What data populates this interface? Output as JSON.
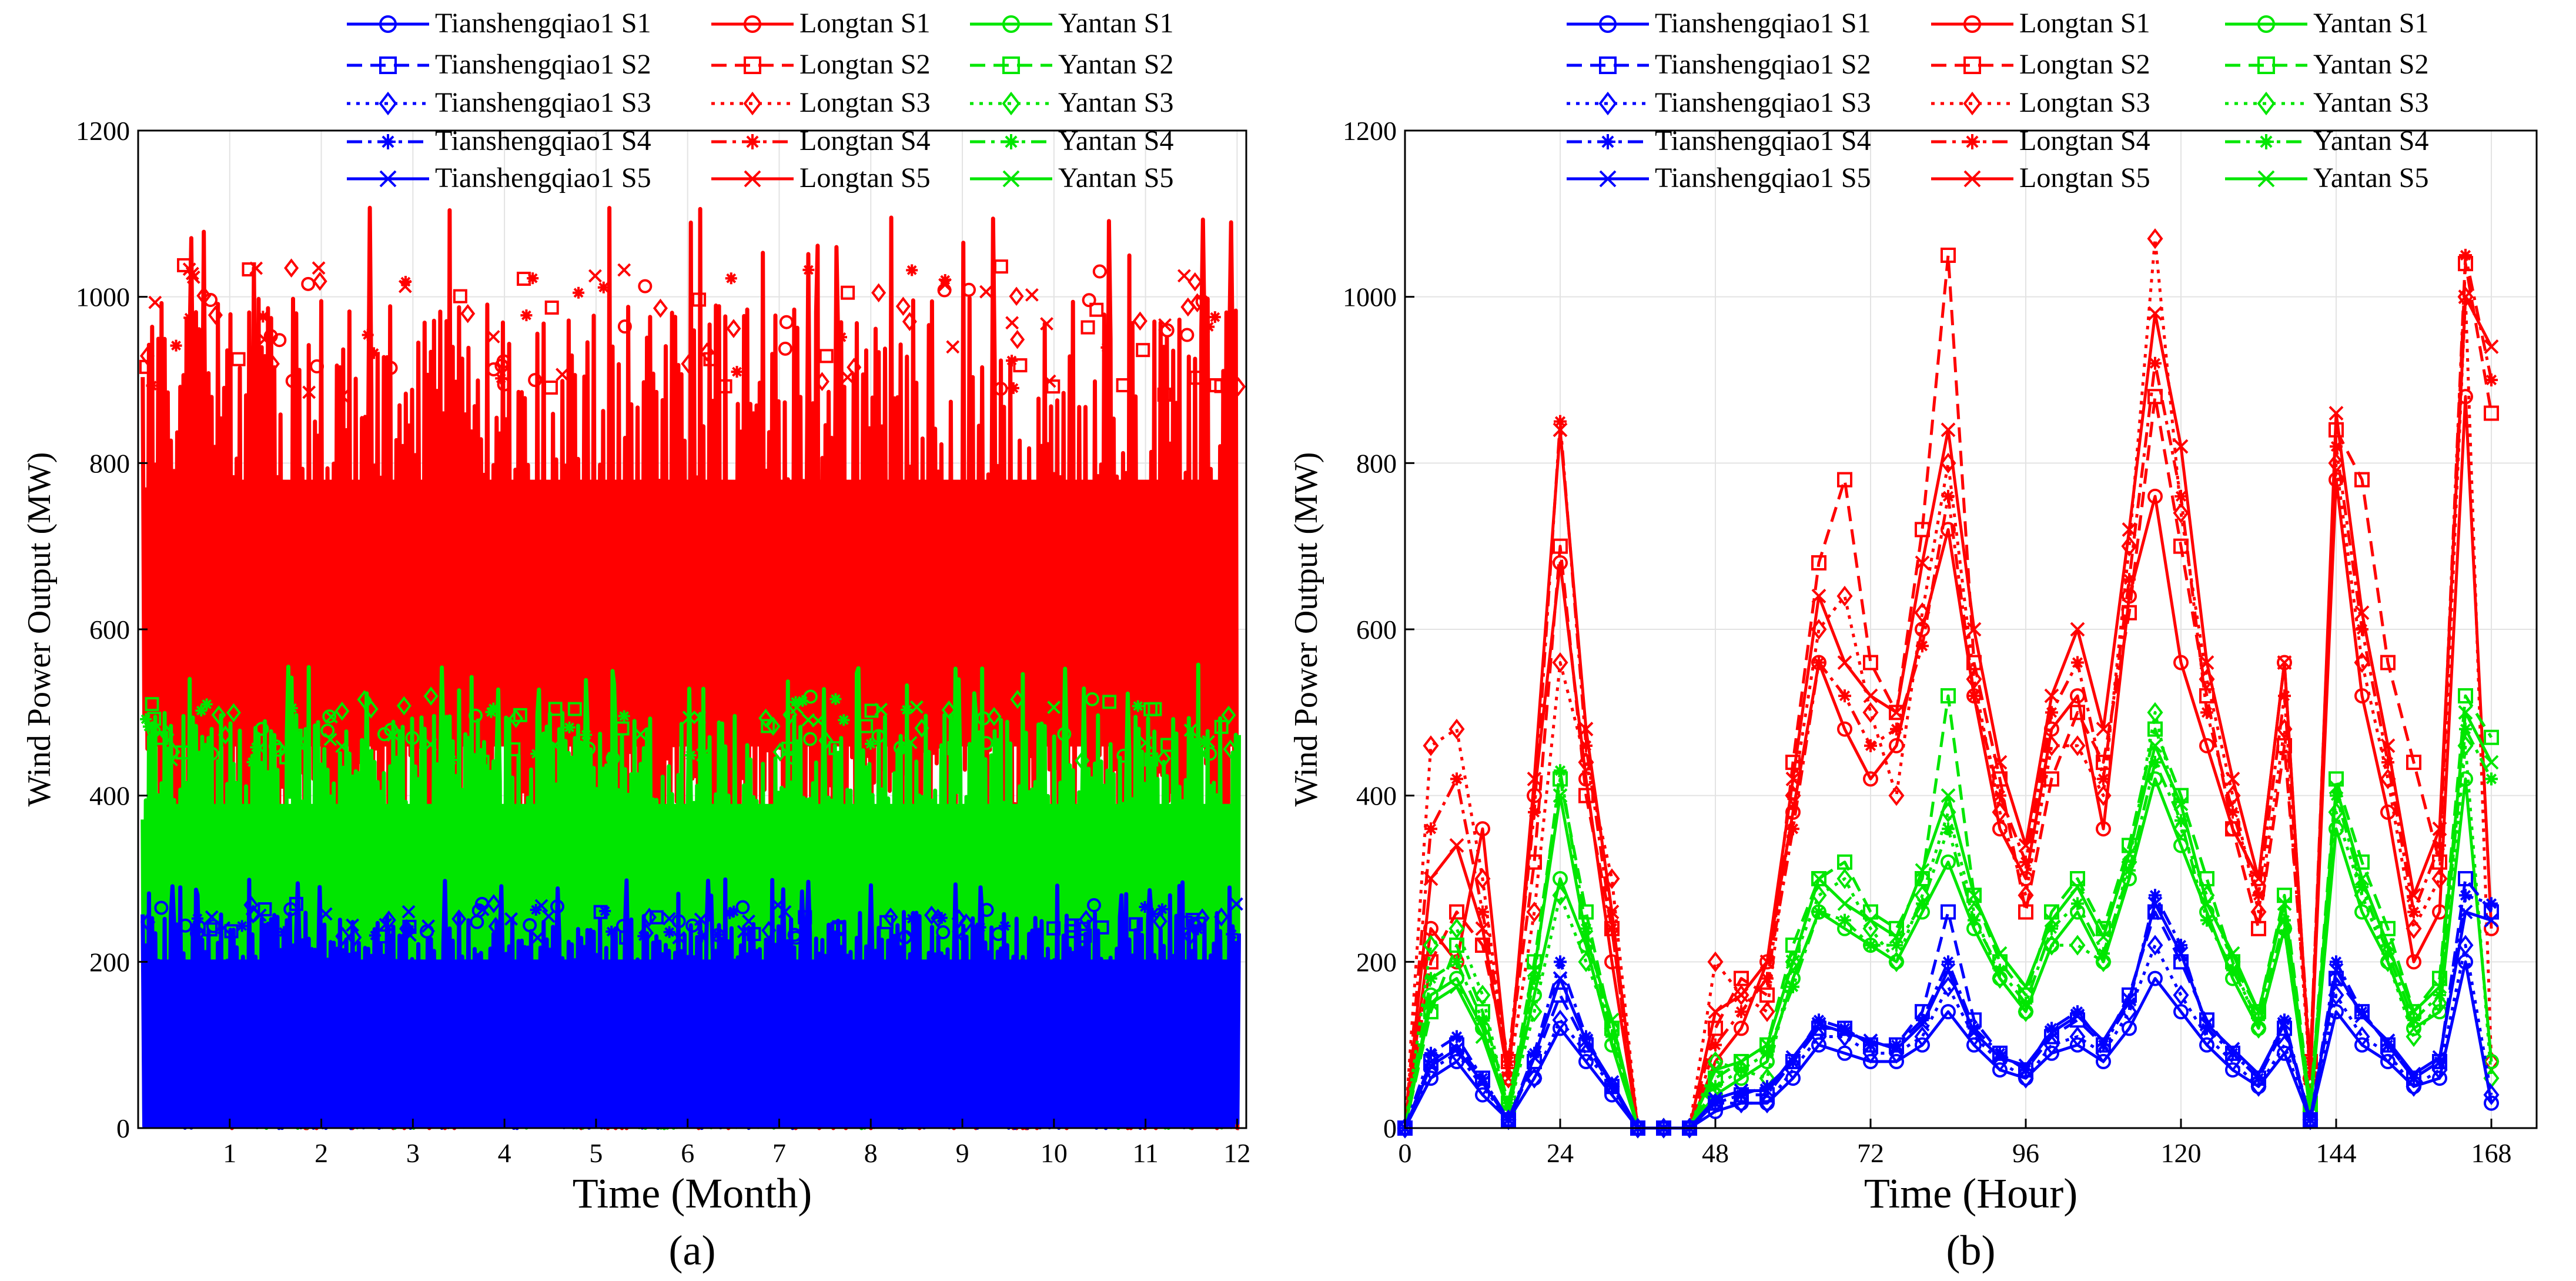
{
  "figure": {
    "panel_labels": [
      "(a)",
      "(b)"
    ]
  },
  "legend": {
    "entries": [
      {
        "label": "Tianshengqiao1 S1",
        "color": "#0000ff",
        "dash": "solid",
        "marker": "circle"
      },
      {
        "label": "Tianshengqiao1 S2",
        "color": "#0000ff",
        "dash": "dashed",
        "marker": "square"
      },
      {
        "label": "Tianshengqiao1 S3",
        "color": "#0000ff",
        "dash": "dotted",
        "marker": "diamond"
      },
      {
        "label": "Tianshengqiao1 S4",
        "color": "#0000ff",
        "dash": "dashdot",
        "marker": "asterisk"
      },
      {
        "label": "Tianshengqiao1 S5",
        "color": "#0000ff",
        "dash": "solid",
        "marker": "x"
      },
      {
        "label": "Longtan S1",
        "color": "#ff0000",
        "dash": "solid",
        "marker": "circle"
      },
      {
        "label": "Longtan S2",
        "color": "#ff0000",
        "dash": "dashed",
        "marker": "square"
      },
      {
        "label": "Longtan S3",
        "color": "#ff0000",
        "dash": "dotted",
        "marker": "diamond"
      },
      {
        "label": "Longtan S4",
        "color": "#ff0000",
        "dash": "dashdot",
        "marker": "asterisk"
      },
      {
        "label": "Longtan S5",
        "color": "#ff0000",
        "dash": "solid",
        "marker": "x"
      },
      {
        "label": "Yantan S1",
        "color": "#00e600",
        "dash": "solid",
        "marker": "circle"
      },
      {
        "label": "Yantan S2",
        "color": "#00e600",
        "dash": "dashed",
        "marker": "square"
      },
      {
        "label": "Yantan S3",
        "color": "#00e600",
        "dash": "dotted",
        "marker": "diamond"
      },
      {
        "label": "Yantan S4",
        "color": "#00e600",
        "dash": "dashdot",
        "marker": "asterisk"
      },
      {
        "label": "Yantan S5",
        "color": "#00e600",
        "dash": "solid",
        "marker": "x"
      }
    ]
  },
  "chart_data": [
    {
      "type": "line",
      "panel": "(a)",
      "xlabel": "Time (Month)",
      "ylabel": "Wind Power Output (MW)",
      "xlim": [
        0,
        12.1
      ],
      "ylim": [
        0,
        1200
      ],
      "xticks": [
        1,
        2,
        3,
        4,
        5,
        6,
        7,
        8,
        9,
        10,
        11,
        12
      ],
      "yticks": [
        0,
        200,
        400,
        600,
        800,
        1000,
        1200
      ],
      "grid": true,
      "legend_position": "top",
      "series_envelope": [
        {
          "name": "Longtan",
          "color": "#ff0000",
          "typical_range": [
            450,
            1000
          ],
          "peak": 1110
        },
        {
          "name": "Yantan",
          "color": "#00e600",
          "typical_range": [
            0,
            500
          ],
          "peak": 560
        },
        {
          "name": "Tianshengqiao1",
          "color": "#0000ff",
          "typical_range": [
            0,
            260
          ],
          "peak": 300
        }
      ]
    },
    {
      "type": "line",
      "panel": "(b)",
      "xlabel": "Time (Hour)",
      "ylabel": "Wind Power Output (MW)",
      "xlim": [
        0,
        175
      ],
      "ylim": [
        0,
        1200
      ],
      "xticks": [
        0,
        24,
        48,
        72,
        96,
        120,
        144,
        168
      ],
      "yticks": [
        0,
        200,
        400,
        600,
        800,
        1000,
        1200
      ],
      "grid": true,
      "legend_position": "top",
      "x": [
        0,
        4,
        8,
        12,
        16,
        20,
        24,
        28,
        32,
        36,
        40,
        44,
        48,
        52,
        56,
        60,
        64,
        68,
        72,
        76,
        80,
        84,
        88,
        92,
        96,
        100,
        104,
        108,
        112,
        116,
        120,
        124,
        128,
        132,
        136,
        140,
        144,
        148,
        152,
        156,
        160,
        164,
        168
      ],
      "series": [
        {
          "name": "Longtan S1",
          "color": "#ff0000",
          "dash": "solid",
          "values": [
            0,
            240,
            200,
            360,
            60,
            400,
            680,
            420,
            200,
            0,
            0,
            0,
            80,
            120,
            200,
            380,
            560,
            480,
            420,
            460,
            600,
            720,
            520,
            360,
            300,
            480,
            520,
            360,
            640,
            760,
            560,
            460,
            360,
            300,
            560,
            60,
            780,
            520,
            380,
            200,
            260,
            880,
            240
          ]
        },
        {
          "name": "Longtan S2",
          "color": "#ff0000",
          "dash": "dashed",
          "values": [
            0,
            200,
            260,
            220,
            80,
            320,
            700,
            400,
            240,
            0,
            0,
            0,
            120,
            180,
            160,
            440,
            680,
            780,
            560,
            500,
            720,
            1050,
            560,
            420,
            260,
            420,
            500,
            440,
            620,
            880,
            700,
            520,
            360,
            240,
            460,
            80,
            840,
            780,
            560,
            440,
            320,
            1040,
            860
          ]
        },
        {
          "name": "Longtan S3",
          "color": "#ff0000",
          "dash": "dotted",
          "values": [
            0,
            460,
            480,
            300,
            60,
            260,
            560,
            440,
            300,
            0,
            0,
            0,
            200,
            160,
            140,
            400,
            600,
            640,
            500,
            400,
            620,
            800,
            540,
            380,
            280,
            460,
            460,
            400,
            700,
            1070,
            740,
            540,
            400,
            260,
            480,
            60,
            800,
            560,
            420,
            240,
            300,
            1000,
            80
          ]
        },
        {
          "name": "Longtan S4",
          "color": "#ff0000",
          "dash": "dashdot",
          "values": [
            0,
            360,
            420,
            260,
            80,
            380,
            850,
            460,
            240,
            0,
            0,
            0,
            100,
            140,
            180,
            360,
            560,
            520,
            460,
            480,
            580,
            760,
            520,
            400,
            320,
            500,
            560,
            420,
            660,
            920,
            760,
            500,
            380,
            280,
            520,
            80,
            820,
            600,
            440,
            260,
            340,
            1050,
            900
          ]
        },
        {
          "name": "Longtan S5",
          "color": "#ff0000",
          "dash": "solid",
          "values": [
            0,
            300,
            340,
            240,
            60,
            420,
            840,
            480,
            260,
            0,
            0,
            0,
            140,
            160,
            200,
            420,
            640,
            560,
            520,
            500,
            680,
            840,
            600,
            440,
            340,
            520,
            600,
            480,
            720,
            980,
            820,
            560,
            420,
            300,
            560,
            60,
            860,
            620,
            460,
            280,
            360,
            1000,
            940
          ]
        },
        {
          "name": "Yantan S1",
          "color": "#00e600",
          "dash": "solid",
          "values": [
            0,
            160,
            180,
            120,
            20,
            160,
            300,
            220,
            100,
            0,
            0,
            0,
            40,
            60,
            80,
            180,
            260,
            240,
            220,
            200,
            260,
            320,
            240,
            180,
            140,
            220,
            260,
            200,
            300,
            420,
            340,
            260,
            180,
            120,
            240,
            20,
            360,
            260,
            200,
            120,
            140,
            420,
            80
          ]
        },
        {
          "name": "Yantan S2",
          "color": "#00e600",
          "dash": "dashed",
          "values": [
            0,
            140,
            220,
            140,
            30,
            200,
            420,
            260,
            120,
            0,
            0,
            0,
            60,
            80,
            100,
            220,
            300,
            320,
            260,
            240,
            300,
            520,
            280,
            200,
            160,
            260,
            300,
            240,
            340,
            480,
            400,
            300,
            200,
            140,
            280,
            30,
            420,
            320,
            240,
            140,
            180,
            520,
            470
          ]
        },
        {
          "name": "Yantan S3",
          "color": "#00e600",
          "dash": "dotted",
          "values": [
            0,
            220,
            240,
            160,
            20,
            140,
            280,
            200,
            120,
            0,
            0,
            0,
            80,
            70,
            60,
            200,
            280,
            300,
            240,
            200,
            280,
            380,
            260,
            180,
            140,
            220,
            220,
            200,
            320,
            500,
            360,
            280,
            200,
            120,
            240,
            20,
            380,
            280,
            200,
            110,
            150,
            460,
            60
          ]
        },
        {
          "name": "Yantan S4",
          "color": "#00e600",
          "dash": "dashdot",
          "values": [
            0,
            180,
            200,
            130,
            30,
            180,
            430,
            240,
            110,
            0,
            0,
            0,
            50,
            70,
            90,
            170,
            260,
            250,
            220,
            220,
            270,
            360,
            250,
            190,
            150,
            240,
            270,
            210,
            310,
            440,
            370,
            250,
            190,
            130,
            250,
            30,
            400,
            290,
            210,
            130,
            160,
            480,
            420
          ]
        },
        {
          "name": "Yantan S5",
          "color": "#00e600",
          "dash": "solid",
          "values": [
            0,
            150,
            170,
            110,
            20,
            190,
            400,
            230,
            130,
            0,
            0,
            0,
            70,
            80,
            100,
            200,
            300,
            270,
            250,
            230,
            310,
            400,
            280,
            210,
            170,
            250,
            290,
            230,
            330,
            460,
            390,
            270,
            210,
            140,
            270,
            20,
            410,
            300,
            220,
            140,
            170,
            500,
            440
          ]
        },
        {
          "name": "Tianshengqiao1 S1",
          "color": "#0000ff",
          "dash": "solid",
          "values": [
            0,
            60,
            80,
            40,
            10,
            60,
            120,
            80,
            40,
            0,
            0,
            0,
            20,
            30,
            30,
            60,
            100,
            90,
            80,
            80,
            100,
            140,
            100,
            70,
            60,
            90,
            100,
            80,
            120,
            180,
            140,
            100,
            70,
            50,
            90,
            10,
            140,
            100,
            80,
            50,
            60,
            200,
            30
          ]
        },
        {
          "name": "Tianshengqiao1 S2",
          "color": "#0000ff",
          "dash": "dashed",
          "values": [
            0,
            80,
            100,
            60,
            10,
            80,
            160,
            100,
            50,
            0,
            0,
            0,
            30,
            40,
            40,
            80,
            120,
            120,
            100,
            100,
            140,
            260,
            130,
            90,
            70,
            110,
            130,
            100,
            160,
            260,
            200,
            130,
            90,
            60,
            120,
            10,
            180,
            140,
            100,
            60,
            80,
            300,
            260
          ]
        },
        {
          "name": "Tianshengqiao1 S3",
          "color": "#0000ff",
          "dash": "dotted",
          "values": [
            0,
            70,
            90,
            50,
            10,
            60,
            130,
            90,
            50,
            0,
            0,
            0,
            30,
            30,
            30,
            70,
            110,
            110,
            90,
            90,
            110,
            170,
            110,
            80,
            60,
            100,
            110,
            90,
            140,
            220,
            160,
            110,
            80,
            50,
            100,
            10,
            160,
            110,
            90,
            50,
            70,
            220,
            40
          ]
        },
        {
          "name": "Tianshengqiao1 S4",
          "color": "#0000ff",
          "dash": "dashdot",
          "values": [
            0,
            90,
            110,
            60,
            10,
            90,
            200,
            110,
            50,
            0,
            0,
            0,
            30,
            40,
            50,
            80,
            130,
            120,
            100,
            100,
            130,
            200,
            120,
            90,
            70,
            120,
            140,
            100,
            150,
            280,
            220,
            120,
            90,
            60,
            130,
            10,
            200,
            140,
            100,
            60,
            80,
            280,
            270
          ]
        },
        {
          "name": "Tianshengqiao1 S5",
          "color": "#0000ff",
          "dash": "solid",
          "values": [
            0,
            75,
            95,
            55,
            10,
            85,
            180,
            105,
            55,
            0,
            0,
            0,
            35,
            45,
            45,
            85,
            125,
            115,
            105,
            95,
            125,
            190,
            115,
            85,
            75,
            115,
            135,
            105,
            155,
            270,
            210,
            125,
            95,
            65,
            125,
            10,
            190,
            135,
            105,
            65,
            85,
            260,
            250
          ]
        }
      ]
    }
  ]
}
